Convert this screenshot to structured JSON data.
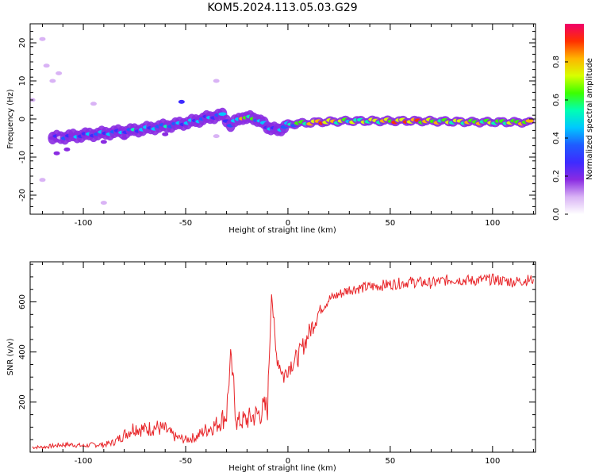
{
  "figure_title": "KOM5.2024.113.05.03.G29",
  "colors": {
    "snr_line": "#e8262a",
    "frame": "#000000",
    "colormap": [
      "#ffffff",
      "#d9b3f5",
      "#8a2be2",
      "#3d2bff",
      "#1f5cff",
      "#00c8ff",
      "#00ffb4",
      "#3cff00",
      "#d8ff00",
      "#ffb400",
      "#ff3000",
      "#f0006a"
    ]
  },
  "chart_data": [
    {
      "type": "heatmap",
      "title": "",
      "xlabel": "Height of straight line (km)",
      "ylabel": "Frequency (Hz)",
      "xlim": [
        -126,
        121
      ],
      "ylim": [
        -25,
        25
      ],
      "xticks": [
        -100,
        -50,
        0,
        50,
        100
      ],
      "yticks": [
        -20,
        -10,
        0,
        10,
        20
      ],
      "colorbar": {
        "label": "Normalized spectral amplitude",
        "range": [
          0,
          1
        ],
        "ticks": [
          "0.0",
          "0.2",
          "0.4",
          "0.6",
          "0.8"
        ],
        "tick_values": [
          0.0,
          0.2,
          0.4,
          0.6,
          0.8
        ]
      },
      "ridge": [
        {
          "x": -115,
          "y": -5.0,
          "amp": 0.2
        },
        {
          "x": -105,
          "y": -4.5,
          "amp": 0.3
        },
        {
          "x": -95,
          "y": -4.0,
          "amp": 0.35
        },
        {
          "x": -85,
          "y": -3.5,
          "amp": 0.35
        },
        {
          "x": -75,
          "y": -3.0,
          "amp": 0.4
        },
        {
          "x": -65,
          "y": -2.2,
          "amp": 0.4
        },
        {
          "x": -55,
          "y": -1.5,
          "amp": 0.4
        },
        {
          "x": -45,
          "y": -0.5,
          "amp": 0.4
        },
        {
          "x": -38,
          "y": 0.5,
          "amp": 0.35
        },
        {
          "x": -32,
          "y": 1.0,
          "amp": 0.4
        },
        {
          "x": -28,
          "y": -1.5,
          "amp": 0.3
        },
        {
          "x": -22,
          "y": 0.5,
          "amp": 0.7
        },
        {
          "x": -15,
          "y": 0.0,
          "amp": 0.5
        },
        {
          "x": -10,
          "y": -2.0,
          "amp": 0.35
        },
        {
          "x": -5,
          "y": -3.0,
          "amp": 0.3
        },
        {
          "x": 0,
          "y": -1.5,
          "amp": 0.45
        },
        {
          "x": 5,
          "y": -1.2,
          "amp": 0.55
        },
        {
          "x": 15,
          "y": -0.8,
          "amp": 0.85
        },
        {
          "x": 30,
          "y": -0.5,
          "amp": 0.6
        },
        {
          "x": 45,
          "y": -0.5,
          "amp": 0.7
        },
        {
          "x": 60,
          "y": -0.5,
          "amp": 0.85
        },
        {
          "x": 75,
          "y": -0.6,
          "amp": 0.65
        },
        {
          "x": 90,
          "y": -0.8,
          "amp": 0.7
        },
        {
          "x": 105,
          "y": -0.8,
          "amp": 0.6
        },
        {
          "x": 120,
          "y": -0.9,
          "amp": 0.8
        }
      ],
      "scatter_blobs": [
        {
          "x": -120,
          "y": 21,
          "amp": 0.1
        },
        {
          "x": -118,
          "y": 14,
          "amp": 0.1
        },
        {
          "x": -115,
          "y": 10,
          "amp": 0.1
        },
        {
          "x": -112,
          "y": 12,
          "amp": 0.1
        },
        {
          "x": -113,
          "y": -9,
          "amp": 0.2
        },
        {
          "x": -108,
          "y": -8,
          "amp": 0.2
        },
        {
          "x": -100,
          "y": -3,
          "amp": 0.1
        },
        {
          "x": -95,
          "y": 4,
          "amp": 0.1
        },
        {
          "x": -90,
          "y": -6,
          "amp": 0.2
        },
        {
          "x": -80,
          "y": -5,
          "amp": 0.15
        },
        {
          "x": -72,
          "y": -3,
          "amp": 0.2
        },
        {
          "x": -60,
          "y": -4,
          "amp": 0.2
        },
        {
          "x": -52,
          "y": 4.5,
          "amp": 0.25
        },
        {
          "x": -35,
          "y": 10,
          "amp": 0.1
        },
        {
          "x": -35,
          "y": -4.5,
          "amp": 0.1
        },
        {
          "x": -90,
          "y": -22,
          "amp": 0.1
        },
        {
          "x": -120,
          "y": -16,
          "amp": 0.1
        },
        {
          "x": -125,
          "y": 5,
          "amp": 0.1
        }
      ]
    },
    {
      "type": "line",
      "title": "",
      "xlabel": "Height of straight line (km)",
      "ylabel": "SNR (v/v)",
      "xlim": [
        -126,
        121
      ],
      "ylim": [
        0,
        760
      ],
      "xticks": [
        -100,
        -50,
        0,
        50,
        100
      ],
      "yticks": [
        200,
        400,
        600
      ],
      "series": [
        {
          "x": [
            -125,
            -120,
            -115,
            -110,
            -105,
            -100,
            -95,
            -90,
            -85,
            -80,
            -75,
            -70,
            -65,
            -60,
            -55,
            -50,
            -45,
            -40,
            -35,
            -30,
            -28,
            -25,
            -20,
            -15,
            -10,
            -8,
            -6,
            -4,
            -2,
            0,
            5,
            10,
            15,
            20,
            25,
            30,
            40,
            50,
            60,
            70,
            80,
            90,
            100,
            110,
            120
          ],
          "y": [
            20,
            20,
            25,
            30,
            30,
            25,
            30,
            30,
            40,
            70,
            100,
            90,
            100,
            90,
            60,
            50,
            60,
            90,
            110,
            150,
            380,
            120,
            130,
            150,
            180,
            650,
            400,
            350,
            300,
            340,
            380,
            470,
            560,
            610,
            630,
            650,
            660,
            670,
            680,
            675,
            690,
            685,
            690,
            680,
            690
          ]
        }
      ]
    }
  ]
}
